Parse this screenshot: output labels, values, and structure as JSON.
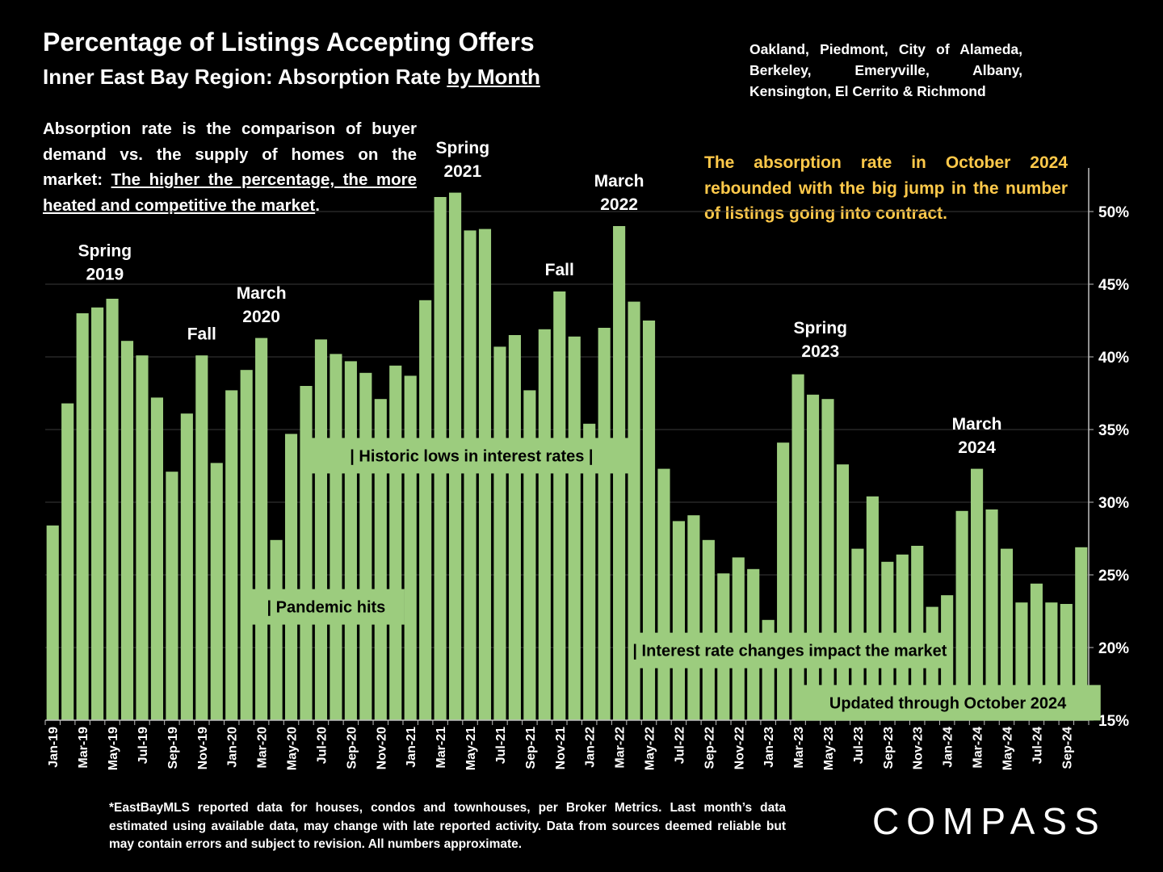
{
  "title": "Percentage of Listings Accepting Offers",
  "subtitle_main": "Inner East Bay Region:  Absorption Rate ",
  "subtitle_underlined": "by Month",
  "regions": "Oakland, Piedmont, City of Alameda, Berkeley, Emeryville, Albany, Kensington, El Cerrito & Richmond",
  "description_main": "Absorption rate is the comparison of buyer demand vs. the supply of homes on the market: ",
  "description_underlined": "The higher the percentage, the more heated and competitive the market",
  "description_end": ".",
  "note": "The absorption rate in October 2024 rebounded with the big jump in the number of listings going into contract.",
  "footnote": "*EastBayMLS reported data for houses, condos and townhouses, per Broker Metrics. Last month’s data estimated using available data, may change with late reported activity. Data from sources deemed reliable but may contain errors and subject to revision. All numbers approximate.",
  "logo": "COMPASS",
  "colors": {
    "bar": "#9ccc7e",
    "background": "#000000",
    "text": "#ffffff",
    "note": "#ffc94a",
    "box": "#9ccc7e"
  },
  "chart_data": {
    "type": "bar",
    "ylim": [
      15,
      53
    ],
    "y_ticks": [
      15,
      20,
      25,
      30,
      35,
      40,
      45,
      50
    ],
    "y_tick_labels": [
      "15%",
      "20%",
      "25%",
      "30%",
      "35%",
      "40%",
      "45%",
      "50%"
    ],
    "y_axis_side": "right",
    "x_tick_labels": [
      "Jan-19",
      "Mar-19",
      "May-19",
      "Jul-19",
      "Sep-19",
      "Nov-19",
      "Jan-20",
      "Mar-20",
      "May-20",
      "Jul-20",
      "Sep-20",
      "Nov-20",
      "Jan-21",
      "Mar-21",
      "May-21",
      "Jul-21",
      "Sep-21",
      "Nov-21",
      "Jan-22",
      "Mar-22",
      "May-22",
      "Jul-22",
      "Sep-22",
      "Nov-22",
      "Jan-23",
      "Mar-23",
      "May-23",
      "Jul-23",
      "Sep-23",
      "Nov-23",
      "Jan-24",
      "Mar-24",
      "May-24",
      "Jul-24",
      "Sep-24"
    ],
    "categories": [
      "Jan-19",
      "Feb-19",
      "Mar-19",
      "Apr-19",
      "May-19",
      "Jun-19",
      "Jul-19",
      "Aug-19",
      "Sep-19",
      "Oct-19",
      "Nov-19",
      "Dec-19",
      "Jan-20",
      "Feb-20",
      "Mar-20",
      "Apr-20",
      "May-20",
      "Jun-20",
      "Jul-20",
      "Aug-20",
      "Sep-20",
      "Oct-20",
      "Nov-20",
      "Dec-20",
      "Jan-21",
      "Feb-21",
      "Mar-21",
      "Apr-21",
      "May-21",
      "Jun-21",
      "Jul-21",
      "Aug-21",
      "Sep-21",
      "Oct-21",
      "Nov-21",
      "Dec-21",
      "Jan-22",
      "Feb-22",
      "Mar-22",
      "Apr-22",
      "May-22",
      "Jun-22",
      "Jul-22",
      "Aug-22",
      "Sep-22",
      "Oct-22",
      "Nov-22",
      "Dec-22",
      "Jan-23",
      "Feb-23",
      "Mar-23",
      "Apr-23",
      "May-23",
      "Jun-23",
      "Jul-23",
      "Aug-23",
      "Sep-23",
      "Oct-23",
      "Nov-23",
      "Dec-23",
      "Jan-24",
      "Feb-24",
      "Mar-24",
      "Apr-24",
      "May-24",
      "Jun-24",
      "Jul-24",
      "Aug-24",
      "Sep-24",
      "Oct-24"
    ],
    "values": [
      28.4,
      36.8,
      43.0,
      43.4,
      44.0,
      41.1,
      40.1,
      37.2,
      32.1,
      36.1,
      40.1,
      32.7,
      37.7,
      39.1,
      41.3,
      27.4,
      34.7,
      38.0,
      41.2,
      40.2,
      39.7,
      38.9,
      37.1,
      39.4,
      38.7,
      43.9,
      51.0,
      51.3,
      48.7,
      48.8,
      40.7,
      41.5,
      37.7,
      41.9,
      44.5,
      41.4,
      35.4,
      42.0,
      49.0,
      43.8,
      42.5,
      32.3,
      28.7,
      29.1,
      27.4,
      25.1,
      26.2,
      25.4,
      21.9,
      34.1,
      38.8,
      37.4,
      37.1,
      32.6,
      26.8,
      30.4,
      25.9,
      26.4,
      27.0,
      22.8,
      23.6,
      29.4,
      32.3,
      29.5,
      26.8,
      23.1,
      24.4,
      23.1,
      23.0,
      26.9
    ],
    "annotations": [
      {
        "text": "Spring\n2019",
        "index": 3.5,
        "y": 45.3
      },
      {
        "text": "Fall",
        "index": 10,
        "y": 41.2
      },
      {
        "text": "March\n2020",
        "index": 14,
        "y": 42.4
      },
      {
        "text": "Spring\n2021",
        "index": 27.5,
        "y": 52.4
      },
      {
        "text": "Fall",
        "index": 34,
        "y": 45.6
      },
      {
        "text": "March\n2022",
        "index": 38,
        "y": 50.1
      },
      {
        "text": "Spring\n2023",
        "index": 51.5,
        "y": 40.0
      },
      {
        "text": "March\n2024",
        "index": 62,
        "y": 33.4
      }
    ],
    "boxes": [
      {
        "text": "|      Historic lows in interest rates      |",
        "start": 17.4,
        "end": 39.8,
        "y": 33.2
      },
      {
        "text": "| Pandemic hits",
        "start": 13.6,
        "end": 24.1,
        "y": 22.8
      },
      {
        "text": "| Interest rate changes impact the market",
        "start": 39.6,
        "end": 60.3,
        "y": 19.8
      },
      {
        "text": "Updated through October 2024",
        "start": 50.3,
        "end": 70.8,
        "y": 16.2
      }
    ]
  }
}
